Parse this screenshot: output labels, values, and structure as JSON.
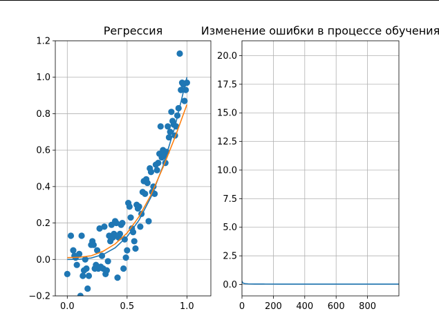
{
  "chart_data": [
    {
      "type": "scatter",
      "title": "Регрессия",
      "xlabel": "",
      "ylabel": "",
      "xlim": [
        -0.1,
        1.2
      ],
      "ylim": [
        -0.2,
        1.2
      ],
      "xticks": [
        0.0,
        0.5,
        1.0
      ],
      "xtick_labels": [
        "0.0",
        "0.5",
        "1.0"
      ],
      "yticks": [
        -0.2,
        0.0,
        0.2,
        0.4,
        0.6,
        0.8,
        1.0,
        1.2
      ],
      "ytick_labels": [
        "−0.2",
        "0.0",
        "0.2",
        "0.4",
        "0.6",
        "0.8",
        "1.0",
        "1.2"
      ],
      "grid": true,
      "colors": {
        "points": "#1f77b4",
        "true_curve": "#1f77b4",
        "fit_curve": "#ff7f0e"
      },
      "series": [
        {
          "kind": "points",
          "x": [
            0.0,
            0.03,
            0.05,
            0.06,
            0.07,
            0.08,
            0.1,
            0.11,
            0.12,
            0.13,
            0.14,
            0.15,
            0.16,
            0.17,
            0.18,
            0.2,
            0.21,
            0.22,
            0.23,
            0.24,
            0.25,
            0.26,
            0.27,
            0.28,
            0.29,
            0.3,
            0.31,
            0.32,
            0.33,
            0.34,
            0.35,
            0.36,
            0.37,
            0.38,
            0.39,
            0.4,
            0.41,
            0.42,
            0.43,
            0.44,
            0.45,
            0.46,
            0.47,
            0.48,
            0.49,
            0.5,
            0.51,
            0.52,
            0.53,
            0.54,
            0.55,
            0.56,
            0.57,
            0.58,
            0.59,
            0.6,
            0.61,
            0.62,
            0.63,
            0.64,
            0.65,
            0.66,
            0.67,
            0.68,
            0.69,
            0.7,
            0.71,
            0.72,
            0.73,
            0.74,
            0.75,
            0.76,
            0.77,
            0.78,
            0.79,
            0.8,
            0.81,
            0.82,
            0.83,
            0.84,
            0.85,
            0.86,
            0.87,
            0.88,
            0.89,
            0.9,
            0.91,
            0.92,
            0.93,
            0.94,
            0.95,
            0.96,
            0.97,
            0.98,
            0.99,
            1.0
          ],
          "y": [
            -0.08,
            0.13,
            0.05,
            0.02,
            0.01,
            -0.03,
            0.03,
            -0.2,
            0.13,
            -0.09,
            -0.06,
            0.0,
            -0.05,
            -0.16,
            -0.09,
            0.08,
            0.1,
            0.08,
            -0.05,
            -0.03,
            0.05,
            -0.05,
            0.17,
            -0.04,
            0.02,
            -0.05,
            0.18,
            -0.08,
            -0.06,
            -0.01,
            0.13,
            0.1,
            0.19,
            0.12,
            0.14,
            0.21,
            0.2,
            -0.1,
            0.12,
            0.14,
            0.19,
            0.2,
            -0.05,
            0.11,
            0.01,
            0.05,
            0.31,
            0.29,
            0.23,
            0.17,
            0.15,
            0.1,
            0.06,
            0.3,
            0.28,
            0.29,
            0.18,
            0.25,
            0.37,
            0.43,
            0.36,
            0.44,
            0.42,
            0.21,
            0.5,
            0.48,
            0.37,
            0.4,
            0.36,
            0.52,
            0.49,
            0.53,
            0.58,
            0.73,
            0.56,
            0.6,
            0.57,
            0.53,
            0.59,
            0.73,
            0.67,
            0.7,
            0.81,
            0.76,
            0.74,
            0.68,
            0.73,
            0.79,
            0.83,
            1.13,
            0.93,
            0.97,
            0.96,
            0.87,
            0.93,
            0.97
          ]
        },
        {
          "kind": "line",
          "x": [
            0.0,
            0.1,
            0.2,
            0.3,
            0.4,
            0.5,
            0.6,
            0.7,
            0.8,
            0.9,
            1.0
          ],
          "y": [
            0.0,
            0.001,
            0.008,
            0.027,
            0.064,
            0.125,
            0.216,
            0.343,
            0.512,
            0.729,
            1.0
          ]
        },
        {
          "kind": "line",
          "x": [
            0.0,
            0.1,
            0.2,
            0.3,
            0.4,
            0.5,
            0.6,
            0.7,
            0.8,
            0.9,
            1.0
          ],
          "y": [
            0.01,
            0.012,
            0.02,
            0.045,
            0.085,
            0.145,
            0.235,
            0.355,
            0.505,
            0.67,
            0.85
          ]
        }
      ]
    },
    {
      "type": "line",
      "title": "Изменение ошибки в процессе обучения",
      "xlabel": "",
      "ylabel": "",
      "xlim": [
        0,
        1000
      ],
      "ylim": [
        -1.0,
        21.3
      ],
      "xticks": [
        0,
        200,
        400,
        600,
        800
      ],
      "xtick_labels": [
        "0",
        "200",
        "400",
        "600",
        "800"
      ],
      "yticks": [
        0.0,
        2.5,
        5.0,
        7.5,
        10.0,
        12.5,
        15.0,
        17.5,
        20.0
      ],
      "ytick_labels": [
        "0.0",
        "2.5",
        "5.0",
        "7.5",
        "10.0",
        "12.5",
        "15.0",
        "17.5",
        "20.0"
      ],
      "grid": true,
      "colors": {
        "line": "#1f77b4"
      },
      "series": [
        {
          "x": [
            0,
            2,
            5,
            10,
            20,
            40,
            80,
            150,
            250,
            400,
            600,
            800,
            1000
          ],
          "y": [
            0.3,
            0.22,
            0.15,
            0.1,
            0.07,
            0.05,
            0.04,
            0.035,
            0.03,
            0.03,
            0.03,
            0.03,
            0.03
          ]
        }
      ]
    }
  ]
}
